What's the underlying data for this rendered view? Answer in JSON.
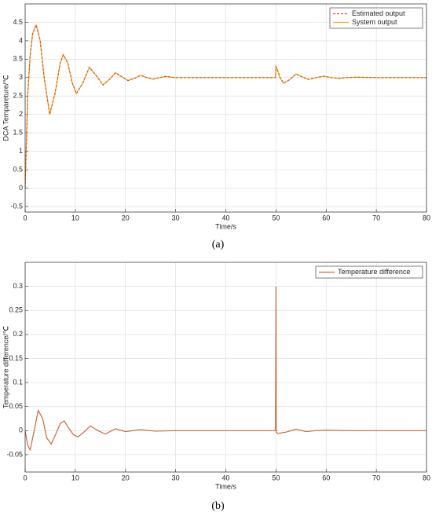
{
  "chart_data": [
    {
      "type": "line",
      "caption": "(a)",
      "xlabel": "Time/s",
      "ylabel": "DCA Tempareture/℃",
      "x": [
        0,
        0.5,
        1,
        1.5,
        2.2,
        3,
        3.8,
        4.9,
        6,
        7,
        7.6,
        8.5,
        9.4,
        10.2,
        11.5,
        12.8,
        14.2,
        15.5,
        16.8,
        18,
        19.3,
        20.5,
        21.8,
        23,
        24.3,
        25.5,
        26.8,
        28,
        30,
        35,
        40,
        45,
        49.9,
        50,
        50.2,
        50.8,
        51.5,
        52.8,
        54,
        55.2,
        56.5,
        58,
        59.5,
        61,
        62.5,
        64,
        66,
        70,
        75,
        80
      ],
      "series": [
        {
          "name": "Estimated output",
          "color": "#d95319",
          "style": "dashed",
          "values": [
            0,
            2.5,
            3.6,
            4.2,
            4.43,
            4.0,
            3.0,
            2.0,
            2.6,
            3.4,
            3.62,
            3.4,
            2.85,
            2.57,
            2.85,
            3.28,
            3.05,
            2.8,
            2.95,
            3.13,
            3.02,
            2.92,
            2.98,
            3.06,
            3.0,
            2.96,
            3.0,
            3.03,
            3.0,
            3.0,
            3.0,
            3.0,
            3.0,
            3.3,
            3.25,
            3.0,
            2.85,
            2.95,
            3.1,
            3.02,
            2.95,
            3.0,
            3.04,
            3.0,
            2.98,
            3.0,
            3.01,
            3.0,
            3.0,
            3.0
          ]
        },
        {
          "name": "System output",
          "color": "#edb120",
          "style": "solid",
          "values": [
            0,
            2.5,
            3.6,
            4.2,
            4.43,
            4.0,
            3.0,
            2.0,
            2.6,
            3.4,
            3.62,
            3.4,
            2.85,
            2.57,
            2.85,
            3.28,
            3.05,
            2.8,
            2.95,
            3.13,
            3.02,
            2.92,
            2.98,
            3.06,
            3.0,
            2.96,
            3.0,
            3.03,
            3.0,
            3.0,
            3.0,
            3.0,
            3.0,
            3.3,
            3.25,
            3.0,
            2.85,
            2.95,
            3.1,
            3.02,
            2.95,
            3.0,
            3.04,
            3.0,
            2.98,
            3.0,
            3.01,
            3.0,
            3.0,
            3.0
          ]
        }
      ],
      "xlim": [
        0,
        80
      ],
      "xticks": [
        0,
        10,
        20,
        30,
        40,
        50,
        60,
        70,
        80
      ],
      "ylim": [
        -0.65,
        5
      ],
      "yticks": [
        -0.5,
        0,
        0.5,
        1,
        1.5,
        2,
        2.5,
        3,
        3.5,
        4,
        4.5
      ],
      "grid": true,
      "legend": "upper right"
    },
    {
      "type": "line",
      "caption": "(b)",
      "xlabel": "Time/s",
      "ylabel": "Temperature difference/℃",
      "x": [
        0,
        0.5,
        1,
        1.8,
        2.6,
        3.5,
        4.3,
        5.2,
        6.2,
        7,
        7.8,
        8.7,
        9.6,
        10.5,
        11.5,
        13,
        14.5,
        16,
        18,
        20,
        23,
        26,
        30,
        40,
        49.9,
        50,
        50.05,
        50.3,
        52,
        54,
        56,
        58,
        60,
        65,
        70,
        80
      ],
      "series": [
        {
          "name": "Temperature difference",
          "color": "#c8693b",
          "style": "solid",
          "values": [
            0,
            -0.03,
            -0.04,
            0.0,
            0.042,
            0.025,
            -0.015,
            -0.028,
            -0.005,
            0.015,
            0.02,
            0.005,
            -0.008,
            -0.013,
            -0.005,
            0.01,
            0.0,
            -0.007,
            0.004,
            -0.002,
            0.002,
            -0.001,
            0.0,
            0.0,
            0.0,
            0.3,
            -0.003,
            -0.006,
            -0.003,
            0.003,
            -0.002,
            0.0,
            0.001,
            0.0,
            0.0,
            0.0
          ]
        }
      ],
      "xlim": [
        0,
        80
      ],
      "xticks": [
        0,
        10,
        20,
        30,
        40,
        50,
        60,
        70,
        80
      ],
      "ylim": [
        -0.086,
        0.35
      ],
      "yticks": [
        -0.05,
        0,
        0.05,
        0.1,
        0.15,
        0.2,
        0.25,
        0.3
      ],
      "grid": true,
      "legend": "upper right"
    }
  ]
}
